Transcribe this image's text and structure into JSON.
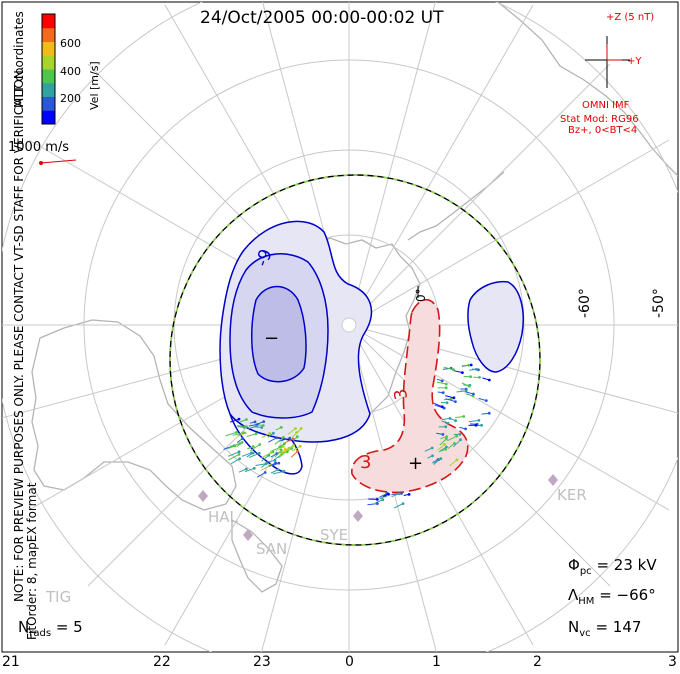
{
  "title": "24/Oct/2005 00:00-00:02 UT",
  "notes": {
    "coord_system": "MLT coordinates",
    "preview": "NOTE: FOR PREVIEW PURPOSES ONLY. PLEASE CONTACT VT-SD STAFF FOR VERIFICATION.",
    "fit_order": "FitOrder: 8, mapEX format"
  },
  "color_scale": {
    "label": "Vel [m/s]",
    "ticks": [
      "600",
      "400",
      "200"
    ],
    "colors": [
      "#0000ff",
      "#2a57d8",
      "#31a1a1",
      "#4cc64c",
      "#a7d32a",
      "#f3bb1a",
      "#f36a1a",
      "#ff0000"
    ]
  },
  "reference_vector": {
    "label": "1000 m/s",
    "color": "#e00000"
  },
  "imf": {
    "z_label": "+Z (5 nT)",
    "y_label": "+Y",
    "source": "OMNI IMF",
    "model_line1": "Stat Mod: RG96",
    "model_line2": "Bz+, 0<BT<4",
    "color": "#e00000"
  },
  "mlt_labels": [
    "21",
    "22",
    "23",
    "0",
    "1",
    "2",
    "3"
  ],
  "lat_labels": [
    "-60°",
    "-50°",
    "0°"
  ],
  "contour_labels": {
    "neg_cell": "-9",
    "pos_cell": "3",
    "pos_cell_2": "3"
  },
  "cell_markers": {
    "minus": "−",
    "plus": "+"
  },
  "stations": [
    "HAL",
    "SAN",
    "SYE",
    "KER",
    "TIG"
  ],
  "stats": {
    "n_rads_sym": "N",
    "n_rads_sub": "rads",
    "n_rads_value": "= 5",
    "phi_sym": "Φ",
    "phi_sub": "pc",
    "phi_value": "= 23 kV",
    "lambda_sym": "Λ",
    "lambda_sub": "HM",
    "lambda_value": "= −66°",
    "nvc_sym": "N",
    "nvc_sub": "vc",
    "nvc_value": "= 147"
  }
}
